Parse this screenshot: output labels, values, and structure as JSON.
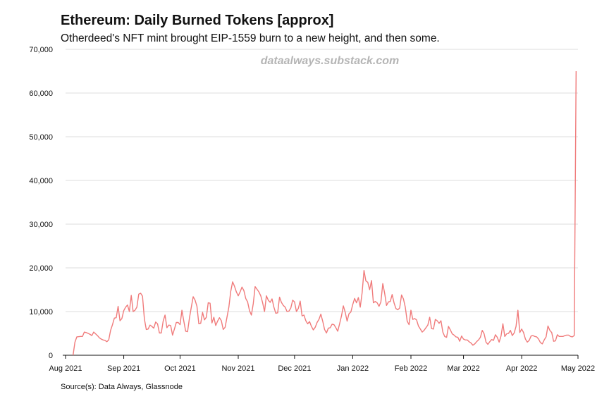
{
  "chart_data": {
    "type": "line",
    "title": "Ethereum: Daily Burned Tokens [approx]",
    "subtitle": "Otherdeed's NFT mint brought EIP-1559 burn to a new height, and then some.",
    "watermark": "dataalways.substack.com",
    "source": "Source(s): Data Always, Glassnode",
    "xlabel": "",
    "ylabel": "",
    "ylim": [
      0,
      70000
    ],
    "xlim": [
      "2021-08-01",
      "2022-05-01"
    ],
    "yticks": [
      0,
      10000,
      20000,
      30000,
      40000,
      50000,
      60000,
      70000
    ],
    "ytick_labels": [
      "0",
      "10,000",
      "20,000",
      "30,000",
      "40,000",
      "50,000",
      "60,000",
      "70,000"
    ],
    "xticks": [
      "2021-08-01",
      "2021-09-01",
      "2021-10-01",
      "2021-11-01",
      "2021-12-01",
      "2022-01-01",
      "2022-02-01",
      "2022-03-01",
      "2022-04-01",
      "2022-05-01"
    ],
    "xtick_labels": [
      "Aug 2021",
      "Sep 2021",
      "Oct 2021",
      "Nov 2021",
      "Dec 2021",
      "Jan 2022",
      "Feb 2022",
      "Mar 2022",
      "Apr 2022",
      "May 2022"
    ],
    "grid": true,
    "line_color": "#f07b7b",
    "series": [
      {
        "points": [
          [
            "2021-08-05",
            0
          ],
          [
            "2021-08-06",
            3000
          ],
          [
            "2021-08-07",
            4200
          ],
          [
            "2021-08-09",
            4300
          ],
          [
            "2021-08-10",
            4300
          ],
          [
            "2021-08-11",
            5300
          ],
          [
            "2021-08-12",
            5200
          ],
          [
            "2021-08-13",
            5000
          ],
          [
            "2021-08-14",
            4800
          ],
          [
            "2021-08-15",
            4500
          ],
          [
            "2021-08-16",
            5300
          ],
          [
            "2021-08-17",
            4900
          ],
          [
            "2021-08-18",
            4500
          ],
          [
            "2021-08-19",
            4000
          ],
          [
            "2021-08-20",
            3700
          ],
          [
            "2021-08-21",
            3500
          ],
          [
            "2021-08-22",
            3400
          ],
          [
            "2021-08-23",
            3100
          ],
          [
            "2021-08-24",
            3500
          ],
          [
            "2021-08-25",
            5700
          ],
          [
            "2021-08-26",
            7000
          ],
          [
            "2021-08-27",
            8500
          ],
          [
            "2021-08-28",
            8600
          ],
          [
            "2021-08-29",
            11200
          ],
          [
            "2021-08-30",
            7900
          ],
          [
            "2021-08-31",
            8400
          ],
          [
            "2021-09-01",
            10200
          ],
          [
            "2021-09-02",
            11000
          ],
          [
            "2021-09-03",
            11500
          ],
          [
            "2021-09-04",
            10000
          ],
          [
            "2021-09-05",
            13700
          ],
          [
            "2021-09-06",
            10000
          ],
          [
            "2021-09-07",
            10300
          ],
          [
            "2021-09-08",
            11000
          ],
          [
            "2021-09-09",
            14000
          ],
          [
            "2021-09-10",
            14200
          ],
          [
            "2021-09-11",
            13500
          ],
          [
            "2021-09-12",
            8300
          ],
          [
            "2021-09-13",
            5900
          ],
          [
            "2021-09-14",
            6000
          ],
          [
            "2021-09-15",
            6900
          ],
          [
            "2021-09-16",
            6600
          ],
          [
            "2021-09-17",
            6200
          ],
          [
            "2021-09-18",
            7600
          ],
          [
            "2021-09-19",
            7200
          ],
          [
            "2021-09-20",
            5100
          ],
          [
            "2021-09-21",
            5100
          ],
          [
            "2021-09-22",
            7800
          ],
          [
            "2021-09-23",
            9200
          ],
          [
            "2021-09-24",
            6300
          ],
          [
            "2021-09-25",
            6900
          ],
          [
            "2021-09-26",
            6800
          ],
          [
            "2021-09-27",
            4600
          ],
          [
            "2021-09-28",
            6000
          ],
          [
            "2021-09-29",
            7500
          ],
          [
            "2021-09-30",
            7500
          ],
          [
            "2021-10-01",
            7000
          ],
          [
            "2021-10-02",
            10300
          ],
          [
            "2021-10-03",
            7800
          ],
          [
            "2021-10-04",
            5500
          ],
          [
            "2021-10-05",
            5400
          ],
          [
            "2021-10-06",
            8500
          ],
          [
            "2021-10-07",
            11000
          ],
          [
            "2021-10-08",
            13400
          ],
          [
            "2021-10-09",
            12600
          ],
          [
            "2021-10-10",
            11200
          ],
          [
            "2021-10-11",
            7200
          ],
          [
            "2021-10-12",
            7300
          ],
          [
            "2021-10-13",
            9800
          ],
          [
            "2021-10-14",
            8100
          ],
          [
            "2021-10-15",
            8700
          ],
          [
            "2021-10-16",
            12000
          ],
          [
            "2021-10-17",
            11900
          ],
          [
            "2021-10-18",
            7400
          ],
          [
            "2021-10-19",
            8700
          ],
          [
            "2021-10-20",
            6800
          ],
          [
            "2021-10-21",
            7800
          ],
          [
            "2021-10-22",
            8600
          ],
          [
            "2021-10-23",
            7900
          ],
          [
            "2021-10-24",
            5900
          ],
          [
            "2021-10-25",
            6400
          ],
          [
            "2021-10-26",
            8700
          ],
          [
            "2021-10-27",
            11000
          ],
          [
            "2021-10-28",
            14600
          ],
          [
            "2021-10-29",
            16800
          ],
          [
            "2021-10-30",
            15800
          ],
          [
            "2021-10-31",
            14500
          ],
          [
            "2021-11-01",
            13600
          ],
          [
            "2021-11-02",
            14500
          ],
          [
            "2021-11-03",
            15600
          ],
          [
            "2021-11-04",
            14800
          ],
          [
            "2021-11-05",
            13000
          ],
          [
            "2021-11-06",
            12200
          ],
          [
            "2021-11-07",
            10200
          ],
          [
            "2021-11-08",
            9200
          ],
          [
            "2021-11-09",
            11800
          ],
          [
            "2021-11-10",
            15700
          ],
          [
            "2021-11-11",
            15100
          ],
          [
            "2021-11-12",
            14500
          ],
          [
            "2021-11-13",
            13600
          ],
          [
            "2021-11-14",
            12000
          ],
          [
            "2021-11-15",
            10000
          ],
          [
            "2021-11-16",
            13600
          ],
          [
            "2021-11-17",
            12600
          ],
          [
            "2021-11-18",
            12100
          ],
          [
            "2021-11-19",
            12900
          ],
          [
            "2021-11-20",
            11000
          ],
          [
            "2021-11-21",
            9600
          ],
          [
            "2021-11-22",
            9700
          ],
          [
            "2021-11-23",
            13300
          ],
          [
            "2021-11-24",
            12100
          ],
          [
            "2021-11-25",
            11400
          ],
          [
            "2021-11-26",
            11000
          ],
          [
            "2021-11-27",
            10000
          ],
          [
            "2021-11-28",
            10100
          ],
          [
            "2021-11-29",
            10800
          ],
          [
            "2021-11-30",
            12600
          ],
          [
            "2021-12-01",
            12200
          ],
          [
            "2021-12-02",
            10000
          ],
          [
            "2021-12-03",
            10700
          ],
          [
            "2021-12-04",
            12400
          ],
          [
            "2021-12-05",
            9000
          ],
          [
            "2021-12-06",
            9200
          ],
          [
            "2021-12-07",
            7900
          ],
          [
            "2021-12-08",
            7200
          ],
          [
            "2021-12-09",
            7700
          ],
          [
            "2021-12-10",
            6600
          ],
          [
            "2021-12-11",
            5800
          ],
          [
            "2021-12-12",
            6400
          ],
          [
            "2021-12-13",
            7500
          ],
          [
            "2021-12-14",
            8200
          ],
          [
            "2021-12-15",
            9400
          ],
          [
            "2021-12-16",
            7800
          ],
          [
            "2021-12-17",
            5900
          ],
          [
            "2021-12-18",
            5100
          ],
          [
            "2021-12-19",
            6200
          ],
          [
            "2021-12-20",
            6300
          ],
          [
            "2021-12-21",
            7100
          ],
          [
            "2021-12-22",
            7000
          ],
          [
            "2021-12-23",
            6300
          ],
          [
            "2021-12-24",
            5500
          ],
          [
            "2021-12-25",
            7200
          ],
          [
            "2021-12-26",
            9000
          ],
          [
            "2021-12-27",
            11300
          ],
          [
            "2021-12-28",
            9800
          ],
          [
            "2021-12-29",
            7800
          ],
          [
            "2021-12-30",
            9500
          ],
          [
            "2021-12-31",
            9900
          ],
          [
            "2022-01-01",
            11600
          ],
          [
            "2022-01-02",
            13000
          ],
          [
            "2022-01-03",
            12000
          ],
          [
            "2022-01-04",
            13200
          ],
          [
            "2022-01-05",
            11000
          ],
          [
            "2022-01-06",
            14300
          ],
          [
            "2022-01-07",
            19400
          ],
          [
            "2022-01-08",
            17000
          ],
          [
            "2022-01-09",
            16700
          ],
          [
            "2022-01-10",
            15000
          ],
          [
            "2022-01-11",
            17100
          ],
          [
            "2022-01-12",
            12000
          ],
          [
            "2022-01-13",
            12300
          ],
          [
            "2022-01-14",
            12000
          ],
          [
            "2022-01-15",
            11200
          ],
          [
            "2022-01-16",
            12200
          ],
          [
            "2022-01-17",
            16400
          ],
          [
            "2022-01-18",
            14200
          ],
          [
            "2022-01-19",
            11400
          ],
          [
            "2022-01-20",
            12200
          ],
          [
            "2022-01-21",
            12300
          ],
          [
            "2022-01-22",
            13900
          ],
          [
            "2022-01-23",
            12000
          ],
          [
            "2022-01-24",
            10700
          ],
          [
            "2022-01-25",
            10400
          ],
          [
            "2022-01-26",
            10800
          ],
          [
            "2022-01-27",
            13800
          ],
          [
            "2022-01-28",
            12900
          ],
          [
            "2022-01-29",
            11000
          ],
          [
            "2022-01-30",
            7800
          ],
          [
            "2022-01-31",
            7000
          ],
          [
            "2022-02-01",
            10300
          ],
          [
            "2022-02-02",
            8200
          ],
          [
            "2022-02-03",
            8400
          ],
          [
            "2022-02-04",
            8100
          ],
          [
            "2022-02-05",
            6700
          ],
          [
            "2022-02-06",
            6000
          ],
          [
            "2022-02-07",
            5300
          ],
          [
            "2022-02-08",
            5700
          ],
          [
            "2022-02-09",
            6300
          ],
          [
            "2022-02-10",
            6900
          ],
          [
            "2022-02-11",
            8700
          ],
          [
            "2022-02-12",
            6100
          ],
          [
            "2022-02-13",
            6000
          ],
          [
            "2022-02-14",
            8200
          ],
          [
            "2022-02-15",
            7900
          ],
          [
            "2022-02-16",
            7300
          ],
          [
            "2022-02-17",
            7900
          ],
          [
            "2022-02-18",
            5300
          ],
          [
            "2022-02-19",
            4300
          ],
          [
            "2022-02-20",
            4100
          ],
          [
            "2022-02-21",
            6600
          ],
          [
            "2022-02-22",
            5800
          ],
          [
            "2022-02-23",
            4900
          ],
          [
            "2022-02-24",
            4600
          ],
          [
            "2022-02-25",
            4200
          ],
          [
            "2022-02-26",
            4100
          ],
          [
            "2022-02-27",
            3200
          ],
          [
            "2022-02-28",
            4400
          ],
          [
            "2022-03-01",
            3700
          ],
          [
            "2022-03-02",
            3500
          ],
          [
            "2022-03-03",
            3500
          ],
          [
            "2022-03-04",
            3100
          ],
          [
            "2022-03-05",
            2800
          ],
          [
            "2022-03-06",
            2300
          ],
          [
            "2022-03-07",
            2600
          ],
          [
            "2022-03-08",
            3100
          ],
          [
            "2022-03-09",
            3500
          ],
          [
            "2022-03-10",
            4100
          ],
          [
            "2022-03-11",
            5700
          ],
          [
            "2022-03-12",
            4900
          ],
          [
            "2022-03-13",
            3000
          ],
          [
            "2022-03-14",
            2500
          ],
          [
            "2022-03-15",
            3100
          ],
          [
            "2022-03-16",
            3600
          ],
          [
            "2022-03-17",
            3400
          ],
          [
            "2022-03-18",
            4700
          ],
          [
            "2022-03-19",
            4100
          ],
          [
            "2022-03-20",
            3000
          ],
          [
            "2022-03-21",
            4400
          ],
          [
            "2022-03-22",
            7200
          ],
          [
            "2022-03-23",
            4300
          ],
          [
            "2022-03-24",
            4900
          ],
          [
            "2022-03-25",
            5000
          ],
          [
            "2022-03-26",
            5700
          ],
          [
            "2022-03-27",
            4500
          ],
          [
            "2022-03-28",
            5100
          ],
          [
            "2022-03-29",
            6600
          ],
          [
            "2022-03-30",
            10300
          ],
          [
            "2022-03-31",
            5200
          ],
          [
            "2022-04-01",
            6000
          ],
          [
            "2022-04-02",
            5200
          ],
          [
            "2022-04-03",
            3700
          ],
          [
            "2022-04-04",
            3000
          ],
          [
            "2022-04-05",
            3400
          ],
          [
            "2022-04-06",
            4400
          ],
          [
            "2022-04-07",
            4500
          ],
          [
            "2022-04-08",
            4300
          ],
          [
            "2022-04-09",
            4200
          ],
          [
            "2022-04-10",
            3700
          ],
          [
            "2022-04-11",
            2900
          ],
          [
            "2022-04-12",
            2600
          ],
          [
            "2022-04-13",
            3500
          ],
          [
            "2022-04-14",
            4200
          ],
          [
            "2022-04-15",
            6700
          ],
          [
            "2022-04-16",
            5700
          ],
          [
            "2022-04-17",
            5200
          ],
          [
            "2022-04-18",
            3200
          ],
          [
            "2022-04-19",
            3300
          ],
          [
            "2022-04-20",
            4700
          ],
          [
            "2022-04-21",
            4300
          ],
          [
            "2022-04-22",
            4300
          ],
          [
            "2022-04-23",
            4300
          ],
          [
            "2022-04-24",
            4500
          ],
          [
            "2022-04-25",
            4600
          ],
          [
            "2022-04-26",
            4600
          ],
          [
            "2022-04-27",
            4300
          ],
          [
            "2022-04-28",
            4200
          ],
          [
            "2022-04-29",
            4500
          ],
          [
            "2022-04-30",
            65000
          ]
        ]
      }
    ]
  }
}
